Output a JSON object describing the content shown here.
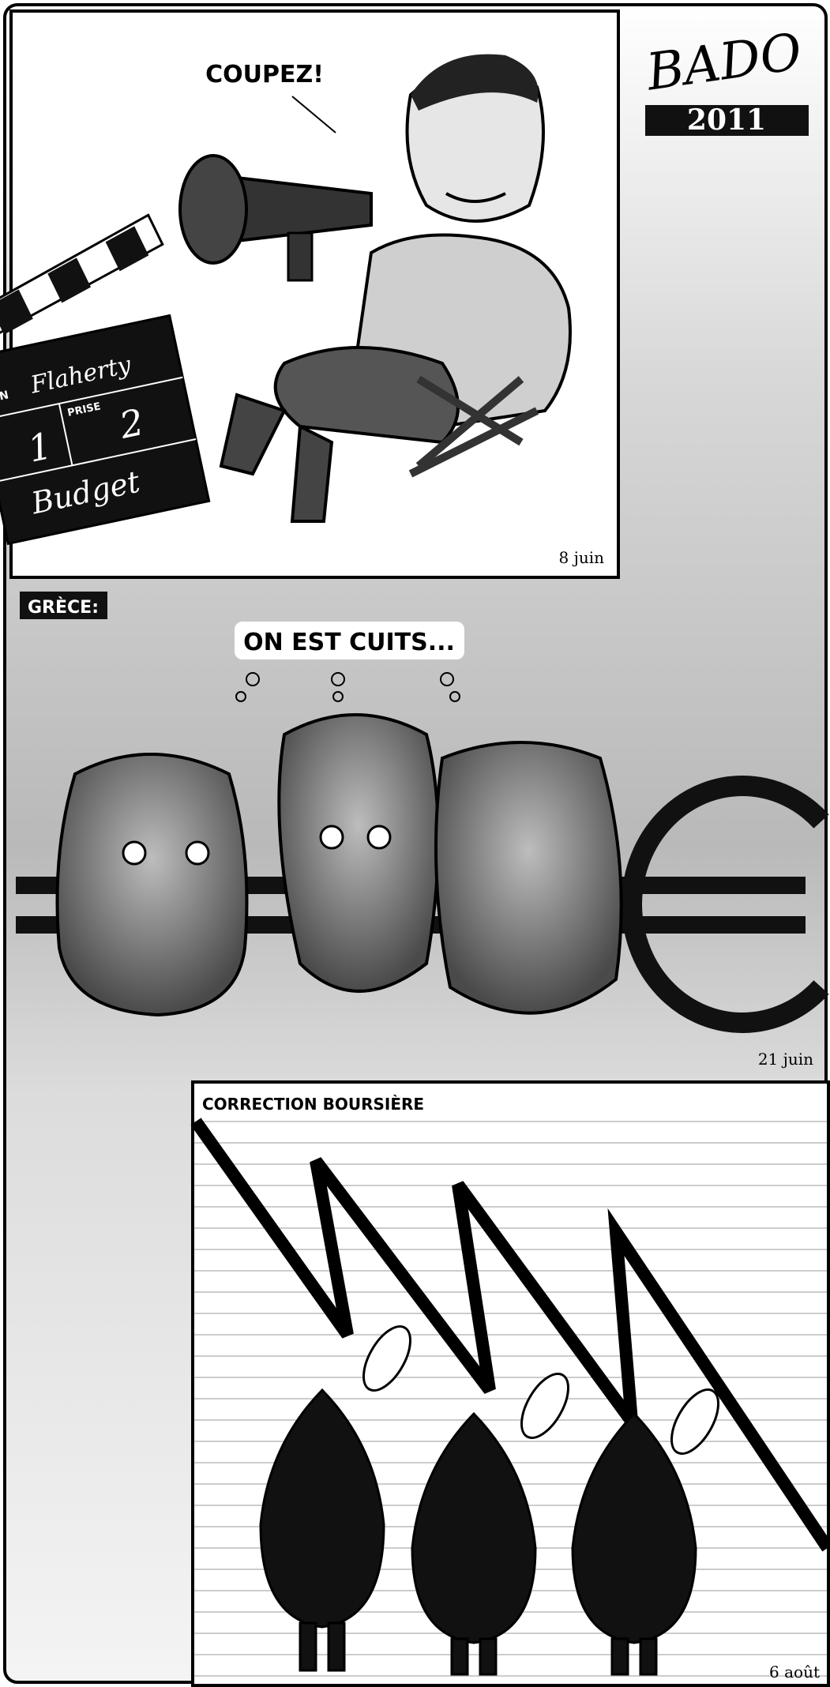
{
  "signature": "BADO",
  "year": "2011",
  "panels": [
    {
      "speech": "COUPEZ!",
      "clapperboard": {
        "production_fragment": "ON",
        "name": "Flaherty",
        "take_label": "PRISE",
        "scene": "1",
        "take": "2",
        "title": "Budget"
      },
      "date": "8 juin"
    },
    {
      "label": "GRÈCE:",
      "thought": "ON EST CUITS...",
      "date": "21 juin"
    },
    {
      "title": "CORRECTION BOURSIÈRE",
      "date": "6 août"
    }
  ]
}
